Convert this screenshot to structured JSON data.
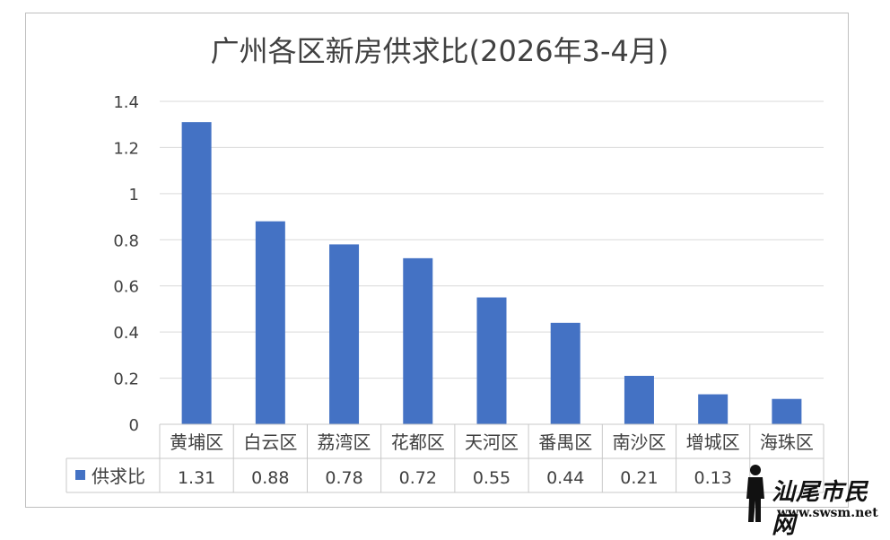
{
  "chart_data": {
    "type": "bar",
    "title": "广州各区新房供求比(2026年3-4月)",
    "categories": [
      "黄埔区",
      "白云区",
      "荔湾区",
      "花都区",
      "天河区",
      "番禺区",
      "南沙区",
      "增城区",
      "海珠区"
    ],
    "series": [
      {
        "name": "供求比",
        "values": [
          1.31,
          0.88,
          0.78,
          0.72,
          0.55,
          0.44,
          0.21,
          0.13,
          0.11
        ],
        "color": "#4472c4"
      }
    ],
    "value_labels": [
      "1.31",
      "0.88",
      "0.78",
      "0.72",
      "0.55",
      "0.44",
      "0.21",
      "0.13",
      ""
    ],
    "yticks": [
      "0",
      "0.2",
      "0.4",
      "0.6",
      "0.8",
      "1",
      "1.2",
      "1.4"
    ],
    "ylim": [
      0,
      1.4
    ],
    "grid": true,
    "legend": "data-table"
  },
  "watermark": {
    "name": "汕尾市民网",
    "url": "www.swsm.net"
  }
}
